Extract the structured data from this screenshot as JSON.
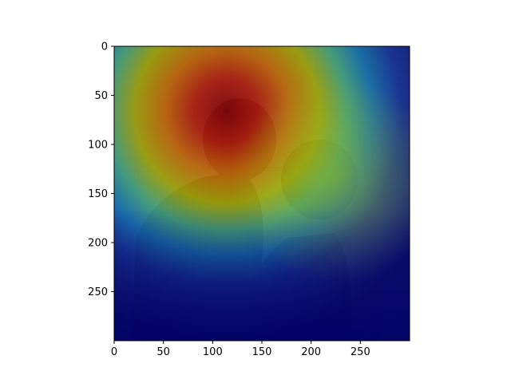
{
  "chart_data": {
    "type": "heatmap",
    "title": "",
    "xlabel": "",
    "ylabel": "",
    "xlim": [
      0,
      300
    ],
    "ylim": [
      300,
      0
    ],
    "x_ticks": [
      0,
      50,
      100,
      150,
      200,
      250
    ],
    "y_ticks": [
      0,
      50,
      100,
      150,
      200,
      250
    ],
    "grid": false,
    "colormap": "jet",
    "image_content": "photo of a couple about to kiss in front of a window, overlaid with an attention heatmap",
    "hotspot": {
      "x": 130,
      "y": 75,
      "level": "max"
    }
  },
  "colors": {
    "background": "#ffffff",
    "axis": "#000000"
  }
}
